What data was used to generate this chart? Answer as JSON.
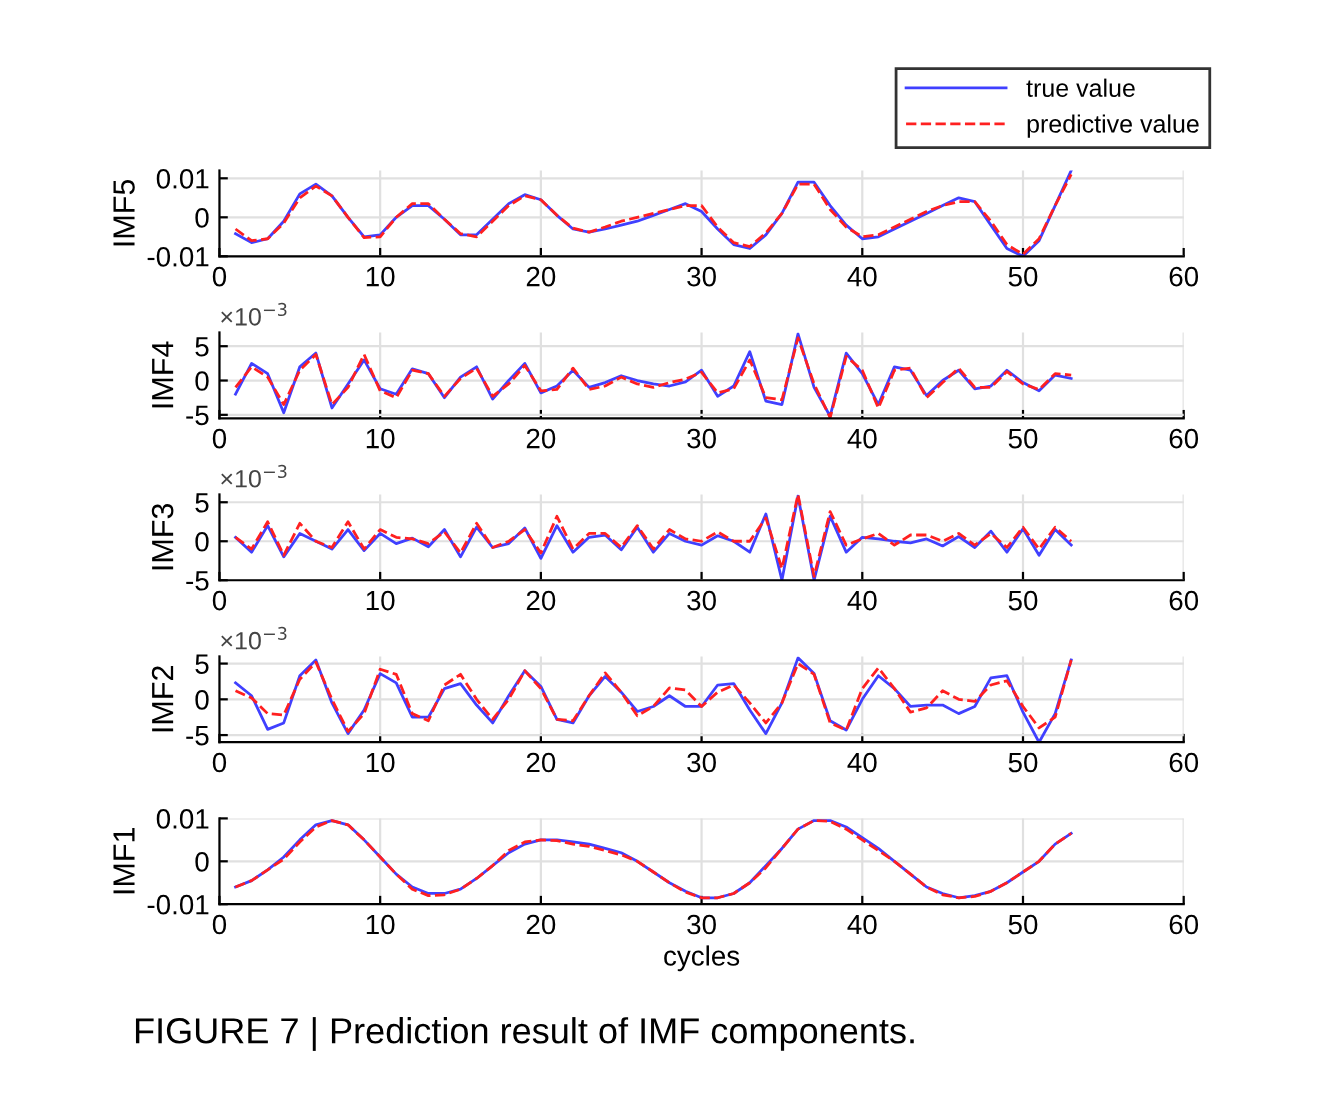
{
  "chart_data": [
    {
      "type": "line",
      "ylabel": "IMF5",
      "xlim": [
        0,
        60
      ],
      "xticks": [
        0,
        10,
        20,
        30,
        40,
        50,
        60
      ],
      "ylim": [
        -0.01,
        0.012
      ],
      "yticks": [
        -0.01,
        0,
        0.01
      ],
      "grid": true,
      "legend": "top right",
      "x": [
        1,
        2,
        3,
        4,
        5,
        6,
        7,
        8,
        9,
        10,
        11,
        12,
        13,
        14,
        15,
        16,
        17,
        18,
        19,
        20,
        21,
        22,
        23,
        24,
        25,
        26,
        27,
        28,
        29,
        30,
        31,
        32,
        33,
        34,
        35,
        36,
        37,
        38,
        39,
        40,
        41,
        42,
        43,
        44,
        45,
        46,
        47,
        48,
        49,
        50,
        51,
        52,
        53
      ],
      "series": [
        {
          "name": "true value",
          "color": "#4040ff",
          "line_style": "solid",
          "values": [
            -0.0042,
            -0.0065,
            -0.0055,
            -0.001,
            0.006,
            0.0085,
            0.0055,
            0,
            -0.005,
            -0.0045,
            0,
            0.003,
            0.003,
            -0.0005,
            -0.0045,
            -0.0045,
            -0.0005,
            0.0035,
            0.0058,
            0.0045,
            0.0005,
            -0.003,
            -0.0038,
            -0.003,
            -0.002,
            -0.001,
            0.0005,
            0.002,
            0.0035,
            0.0015,
            -0.003,
            -0.007,
            -0.008,
            -0.0045,
            0.001,
            0.009,
            0.009,
            0.003,
            -0.002,
            -0.0055,
            -0.005,
            -0.003,
            -0.001,
            0.001,
            0.003,
            0.005,
            0.004,
            -0.002,
            -0.008,
            -0.01,
            -0.006,
            0.003,
            0.012
          ]
        },
        {
          "name": "predictive value",
          "color": "#ff2020",
          "line_style": "dashed",
          "values": [
            -0.003,
            -0.006,
            -0.0055,
            -0.0015,
            0.005,
            0.008,
            0.0055,
            0,
            -0.0052,
            -0.005,
            0,
            0.0035,
            0.0035,
            -0.0005,
            -0.0042,
            -0.005,
            -0.001,
            0.003,
            0.0055,
            0.0045,
            0.0005,
            -0.0028,
            -0.0038,
            -0.0025,
            -0.001,
            0,
            0.001,
            0.002,
            0.003,
            0.003,
            -0.0025,
            -0.0065,
            -0.0075,
            -0.004,
            0.001,
            0.0085,
            0.0085,
            0.002,
            -0.0025,
            -0.005,
            -0.0045,
            -0.0025,
            -0.0005,
            0.0015,
            0.003,
            0.004,
            0.004,
            -0.001,
            -0.007,
            -0.0095,
            -0.0055,
            0.003,
            0.011
          ]
        }
      ]
    },
    {
      "type": "line",
      "ylabel": "IMF4",
      "xlim": [
        0,
        60
      ],
      "xticks": [
        0,
        10,
        20,
        30,
        40,
        50,
        60
      ],
      "ylim": [
        -5.5,
        7
      ],
      "yticks": [
        -5,
        0,
        5
      ],
      "grid": true,
      "annotations": [
        "×10$^{−3}$"
      ],
      "x": [
        1,
        2,
        3,
        4,
        5,
        6,
        7,
        8,
        9,
        10,
        11,
        12,
        13,
        14,
        15,
        16,
        17,
        18,
        19,
        20,
        21,
        22,
        23,
        24,
        25,
        26,
        27,
        28,
        29,
        30,
        31,
        32,
        33,
        34,
        35,
        36,
        37,
        38,
        39,
        40,
        41,
        42,
        43,
        44,
        45,
        46,
        47,
        48,
        49,
        50,
        51,
        52,
        53
      ],
      "series": [
        {
          "color": "#4040ff",
          "line_style": "solid",
          "values": [
            -2,
            2.5,
            1,
            -4.7,
            2,
            4,
            -4,
            -0.5,
            3,
            -1.2,
            -2,
            1.7,
            1,
            -2.5,
            0.5,
            2,
            -2.7,
            0,
            2.5,
            -1.8,
            -0.8,
            1.5,
            -1,
            -0.3,
            0.7,
            0,
            -0.5,
            -0.8,
            -0.2,
            1.5,
            -2.3,
            -0.8,
            4.2,
            -3,
            -3.5,
            6.8,
            -1,
            -5.2,
            4,
            1,
            -3.5,
            2,
            1.5,
            -2.2,
            0,
            1.5,
            -1.2,
            -0.8,
            1.5,
            -0.3,
            -1.5,
            0.8,
            0.3
          ]
        },
        {
          "color": "#ff2020",
          "line_style": "dashed",
          "values": [
            -1,
            2,
            0.5,
            -3.5,
            1.5,
            3.8,
            -3.5,
            -1,
            3.8,
            -1.5,
            -2.5,
            1.5,
            1,
            -2.3,
            0.3,
            1.8,
            -2.3,
            -0.5,
            2.2,
            -1.5,
            -1.3,
            1.8,
            -1.3,
            -0.8,
            0.5,
            -0.5,
            -1,
            -0.3,
            0.2,
            1.2,
            -1.8,
            -1.2,
            3,
            -2.5,
            -2.8,
            6.2,
            -0.5,
            -5.4,
            3.5,
            1.5,
            -4,
            1.5,
            1.8,
            -2.5,
            -0.3,
            1.8,
            -1,
            -1,
            1.3,
            -0.5,
            -1.3,
            1,
            0.8
          ]
        }
      ]
    },
    {
      "type": "line",
      "ylabel": "IMF3",
      "xlim": [
        0,
        60
      ],
      "xticks": [
        0,
        10,
        20,
        30,
        40,
        50,
        60
      ],
      "ylim": [
        -5,
        6
      ],
      "yticks": [
        -5,
        0,
        5
      ],
      "grid": true,
      "annotations": [
        "×10$^{−3}$"
      ],
      "x": [
        1,
        2,
        3,
        4,
        5,
        6,
        7,
        8,
        9,
        10,
        11,
        12,
        13,
        14,
        15,
        16,
        17,
        18,
        19,
        20,
        21,
        22,
        23,
        24,
        25,
        26,
        27,
        28,
        29,
        30,
        31,
        32,
        33,
        34,
        35,
        36,
        37,
        38,
        39,
        40,
        41,
        42,
        43,
        44,
        45,
        46,
        47,
        48,
        49,
        50,
        51,
        52,
        53
      ],
      "series": [
        {
          "color": "#4040ff",
          "line_style": "solid",
          "values": [
            0.5,
            -1.4,
            2,
            -2,
            1,
            0,
            -1,
            1.5,
            -1.2,
            1,
            -0.3,
            0.4,
            -0.7,
            1.5,
            -2,
            1.8,
            -0.8,
            -0.3,
            1.7,
            -2.2,
            2,
            -1.4,
            0.5,
            0.8,
            -1.1,
            1.8,
            -1.4,
            1,
            0,
            -0.5,
            0.7,
            0,
            -1.4,
            3.5,
            -5,
            5.8,
            -5,
            3.2,
            -1.4,
            0.5,
            0.3,
            0,
            -0.2,
            0.3,
            -0.6,
            0.6,
            -0.8,
            1.3,
            -1.4,
            1.6,
            -1.8,
            1.5,
            -0.5
          ]
        },
        {
          "color": "#ff2020",
          "line_style": "dashed",
          "values": [
            0.5,
            -1,
            2.5,
            -1.8,
            2.3,
            0,
            -0.8,
            2.5,
            -1,
            1.5,
            0.5,
            0.3,
            -0.3,
            1.2,
            -1.5,
            2.3,
            -0.8,
            0,
            1.5,
            -1.5,
            3.2,
            -1,
            1,
            1,
            -0.8,
            2,
            -1,
            1.5,
            0.3,
            0,
            1.2,
            0,
            0,
            3,
            -3.5,
            6,
            -4.5,
            3.8,
            -0.5,
            0.3,
            1,
            -0.5,
            0.8,
            0.8,
            0,
            1,
            -0.5,
            1,
            -0.8,
            1.8,
            -1,
            1.8,
            0
          ]
        }
      ]
    },
    {
      "type": "line",
      "ylabel": "IMF2",
      "xlim": [
        0,
        60
      ],
      "xticks": [
        0,
        10,
        20,
        30,
        40,
        50,
        60
      ],
      "ylim": [
        -6,
        6
      ],
      "yticks": [
        -5,
        0,
        5
      ],
      "grid": true,
      "annotations": [
        "×10$^{−3}$"
      ],
      "x": [
        1,
        2,
        3,
        4,
        5,
        6,
        7,
        8,
        9,
        10,
        11,
        12,
        13,
        14,
        15,
        16,
        17,
        18,
        19,
        20,
        21,
        22,
        23,
        24,
        25,
        26,
        27,
        28,
        29,
        30,
        31,
        32,
        33,
        34,
        35,
        36,
        37,
        38,
        39,
        40,
        41,
        42,
        43,
        44,
        45,
        46,
        47,
        48,
        49,
        50,
        51,
        52,
        53
      ],
      "series": [
        {
          "color": "#4040ff",
          "line_style": "solid",
          "values": [
            2.3,
            0.5,
            -4.2,
            -3.3,
            3.3,
            5.5,
            -0.5,
            -4.8,
            -1.5,
            3.6,
            2.3,
            -2.5,
            -2.5,
            1.5,
            2.2,
            -0.8,
            -3.3,
            0.5,
            4,
            1.8,
            -2.8,
            -3.3,
            0.5,
            3.2,
            1,
            -1.7,
            -1,
            0.5,
            -1,
            -1,
            2,
            2.2,
            -1.5,
            -4.8,
            -0.5,
            5.8,
            3.6,
            -3,
            -4.3,
            0,
            3.3,
            1.5,
            -1,
            -0.8,
            -0.8,
            -2,
            -1,
            3,
            3.3,
            -1.8,
            -6,
            -2,
            5.5
          ]
        },
        {
          "color": "#ff2020",
          "line_style": "dashed",
          "values": [
            1.2,
            0.2,
            -2,
            -2.2,
            2.8,
            5.2,
            0,
            -4.5,
            -2,
            4.2,
            3.5,
            -2,
            -3,
            2,
            3.5,
            0,
            -2.8,
            0,
            4,
            1.5,
            -2.8,
            -3,
            0.5,
            3.7,
            1,
            -2.3,
            -1,
            1.6,
            1.3,
            -1,
            1,
            2,
            -0.5,
            -3.3,
            -0.5,
            5,
            3.5,
            -3.3,
            -4.3,
            1.5,
            4.4,
            1.5,
            -1.8,
            -1.2,
            1.2,
            0,
            -0.3,
            2,
            2.6,
            -1,
            -4,
            -2.5,
            5.5
          ]
        }
      ]
    },
    {
      "type": "line",
      "ylabel": "IMF1",
      "xlabel": "cycles",
      "xlim": [
        0,
        60
      ],
      "xticks": [
        0,
        10,
        20,
        30,
        40,
        50,
        60
      ],
      "ylim": [
        -0.01,
        0.01
      ],
      "yticks": [
        -0.01,
        0,
        0.01
      ],
      "grid": true,
      "annotations": [
        "FIGURE 7 | Prediction result of IMF components."
      ],
      "x": [
        1,
        2,
        3,
        4,
        5,
        6,
        7,
        8,
        9,
        10,
        11,
        12,
        13,
        14,
        15,
        16,
        17,
        18,
        19,
        20,
        21,
        22,
        23,
        24,
        25,
        26,
        27,
        28,
        29,
        30,
        31,
        32,
        33,
        34,
        35,
        36,
        37,
        38,
        39,
        40,
        41,
        42,
        43,
        44,
        45,
        46,
        47,
        48,
        49,
        50,
        51,
        52,
        53
      ],
      "series": [
        {
          "color": "#4040ff",
          "line_style": "solid",
          "values": [
            -0.006,
            -0.0045,
            -0.002,
            0.001,
            0.005,
            0.0085,
            0.0095,
            0.0085,
            0.005,
            0.001,
            -0.003,
            -0.006,
            -0.0075,
            -0.0075,
            -0.0065,
            -0.004,
            -0.001,
            0.002,
            0.004,
            0.005,
            0.005,
            0.0045,
            0.004,
            0.003,
            0.002,
            0,
            -0.0025,
            -0.005,
            -0.007,
            -0.0085,
            -0.0085,
            -0.0075,
            -0.005,
            -0.001,
            0.003,
            0.0075,
            0.0095,
            0.0095,
            0.008,
            0.0055,
            0.003,
            0,
            -0.003,
            -0.006,
            -0.0075,
            -0.0085,
            -0.008,
            -0.007,
            -0.005,
            -0.0025,
            0,
            0.004,
            0.0065
          ]
        },
        {
          "color": "#ff2020",
          "line_style": "dashed",
          "values": [
            -0.006,
            -0.0045,
            -0.002,
            0.0005,
            0.0045,
            0.008,
            0.0095,
            0.0085,
            0.005,
            0.001,
            -0.003,
            -0.0065,
            -0.008,
            -0.0078,
            -0.0065,
            -0.004,
            -0.001,
            0.0025,
            0.0045,
            0.005,
            0.0048,
            0.004,
            0.0035,
            0.0025,
            0.0015,
            0,
            -0.0025,
            -0.005,
            -0.0072,
            -0.0085,
            -0.0085,
            -0.0075,
            -0.005,
            -0.0015,
            0.003,
            0.0075,
            0.0095,
            0.0093,
            0.0075,
            0.005,
            0.0025,
            0,
            -0.003,
            -0.006,
            -0.0078,
            -0.0085,
            -0.0082,
            -0.007,
            -0.005,
            -0.0025,
            0,
            0.004,
            0.0065
          ]
        }
      ]
    }
  ]
}
